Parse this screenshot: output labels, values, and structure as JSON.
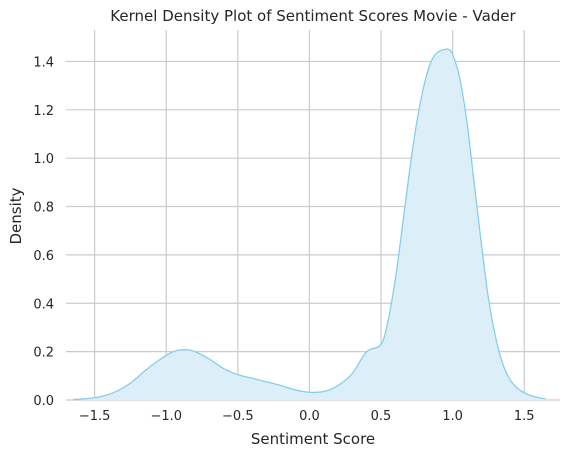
{
  "chart_data": {
    "type": "area",
    "title": "Kernel Density Plot of Sentiment Scores Movie - Vader",
    "xlabel": "Sentiment Score",
    "ylabel": "Density",
    "xlim": [
      -1.7,
      1.75
    ],
    "ylim": [
      0,
      1.53
    ],
    "grid": true,
    "xticks": [
      "−1.5",
      "−1.0",
      "−0.5",
      "0.0",
      "0.5",
      "1.0",
      "1.5"
    ],
    "xtick_values": [
      -1.5,
      -1.0,
      -0.5,
      0.0,
      0.5,
      1.0,
      1.5
    ],
    "yticks": [
      "0.0",
      "0.2",
      "0.4",
      "0.6",
      "0.8",
      "1.0",
      "1.2",
      "1.4"
    ],
    "ytick_values": [
      0.0,
      0.2,
      0.4,
      0.6,
      0.8,
      1.0,
      1.2,
      1.4
    ],
    "line_color": "#87CEEB",
    "fill_color": "#DCEFF8",
    "series": [
      {
        "x": [
          -1.65,
          -1.55,
          -1.45,
          -1.35,
          -1.25,
          -1.15,
          -1.05,
          -0.95,
          -0.87,
          -0.8,
          -0.7,
          -0.6,
          -0.5,
          -0.4,
          -0.3,
          -0.2,
          -0.1,
          0.0,
          0.1,
          0.2,
          0.3,
          0.4,
          0.5,
          0.55,
          0.6,
          0.65,
          0.7,
          0.75,
          0.8,
          0.85,
          0.9,
          0.95,
          0.97,
          1.0,
          1.05,
          1.1,
          1.15,
          1.2,
          1.25,
          1.3,
          1.35,
          1.4,
          1.45,
          1.5,
          1.55,
          1.6,
          1.65
        ],
        "y": [
          0.002,
          0.006,
          0.015,
          0.035,
          0.07,
          0.12,
          0.165,
          0.2,
          0.208,
          0.2,
          0.17,
          0.13,
          0.105,
          0.09,
          0.075,
          0.06,
          0.042,
          0.032,
          0.035,
          0.06,
          0.11,
          0.2,
          0.23,
          0.33,
          0.5,
          0.72,
          0.95,
          1.15,
          1.3,
          1.4,
          1.44,
          1.45,
          1.45,
          1.43,
          1.33,
          1.15,
          0.9,
          0.65,
          0.42,
          0.26,
          0.15,
          0.085,
          0.05,
          0.03,
          0.018,
          0.01,
          0.005
        ]
      }
    ]
  }
}
